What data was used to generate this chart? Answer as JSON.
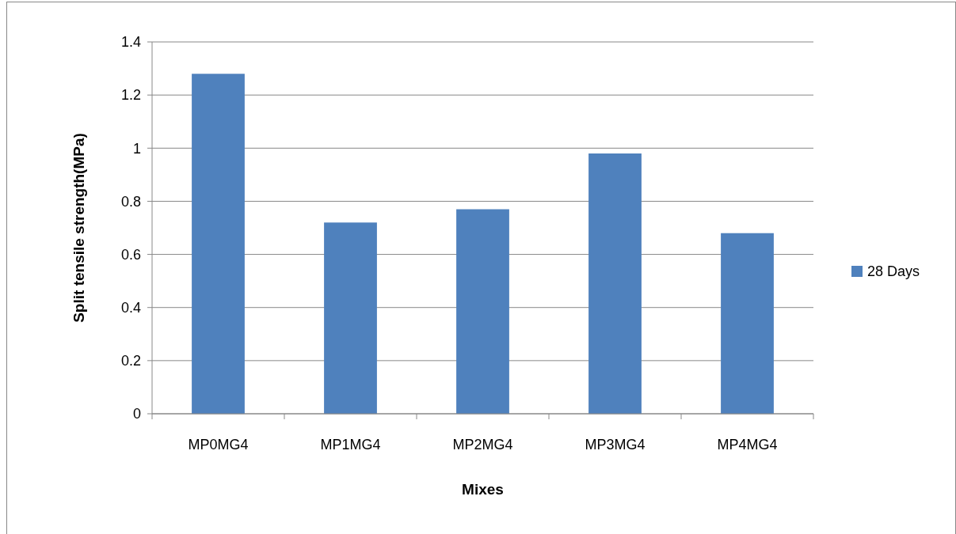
{
  "chart_data": {
    "type": "bar",
    "xlabel": "Mixes",
    "ylabel": "Split tensile strength(MPa)",
    "categories": [
      "MP0MG4",
      "MP1MG4",
      "MP2MG4",
      "MP3MG4",
      "MP4MG4"
    ],
    "series": [
      {
        "name": "28 Days",
        "color": "#4f81bd",
        "values": [
          1.28,
          0.72,
          0.77,
          0.98,
          0.68
        ]
      }
    ],
    "ylim": [
      0,
      1.4
    ],
    "yticks": [
      0,
      0.2,
      0.4,
      0.6,
      0.8,
      1,
      1.2,
      1.4
    ],
    "grid": "y",
    "legend": "right"
  }
}
